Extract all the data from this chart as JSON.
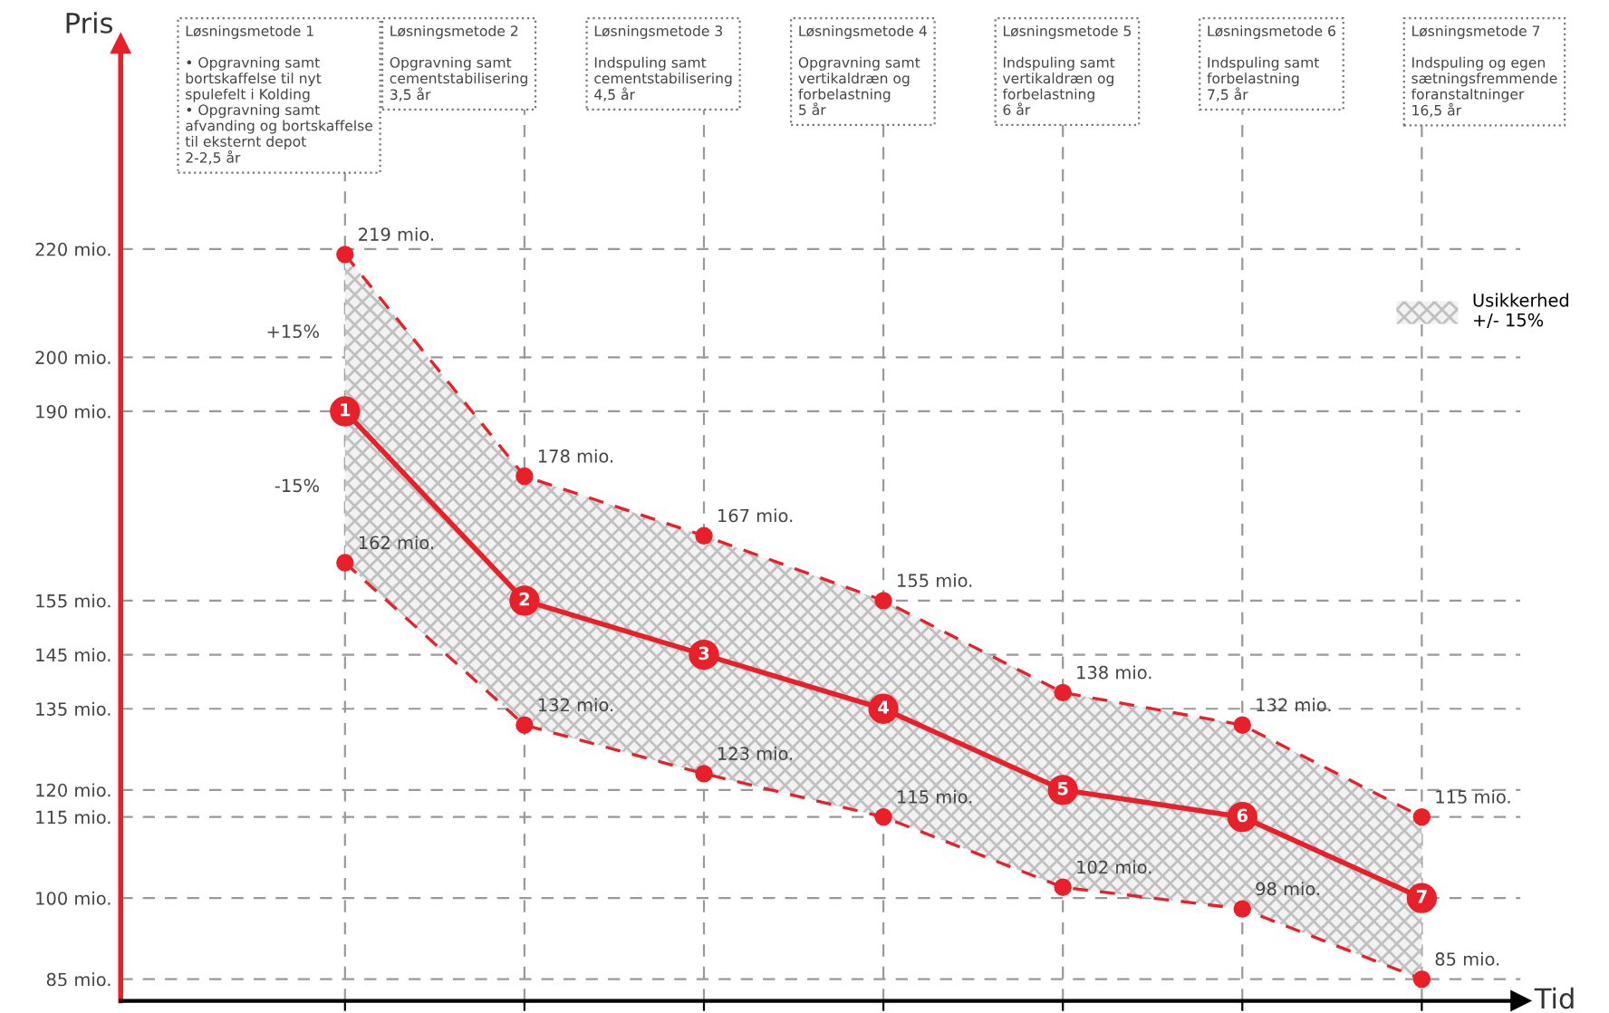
{
  "chart_data": {
    "type": "line",
    "xlabel": "Tid",
    "ylabel": "Pris",
    "categories": [
      null,
      null,
      null,
      null,
      null,
      null,
      null
    ],
    "series": [
      {
        "name": "Usikkerhed\n+/- 15%",
        "color": "#e8202a",
        "values": [
          190,
          155,
          145,
          135,
          120,
          115,
          100
        ],
        "lower": [
          162,
          132,
          123,
          115,
          102,
          98,
          85
        ],
        "upper": [
          219,
          178,
          167,
          155,
          138,
          132,
          115
        ],
        "marker": "circle",
        "line_style": "solid"
      },
      {
        "color": "#e8202a",
        "values": [
          219,
          178,
          167,
          155,
          138,
          132,
          115
        ],
        "value_labels": [
          "219 mio.",
          "178 mio.",
          "167 mio.",
          "155 mio.",
          "138 mio.",
          "132 mio.",
          "115 mio."
        ],
        "marker": "circle",
        "line_style": "dashed"
      },
      {
        "color": "#e8202a",
        "values": [
          162,
          132,
          123,
          115,
          102,
          98,
          85
        ],
        "value_labels": [
          "162 mio.",
          "132 mio.",
          "123 mio.",
          "115 mio.",
          "102 mio.",
          "98 mio.",
          "85 mio."
        ],
        "marker": "circle",
        "line_style": "dashed"
      }
    ],
    "ylim": [
      81,
      258
    ],
    "yticks": [
      {
        "value": 85,
        "label": "85 mio."
      },
      {
        "value": 100,
        "label": "100 mio."
      },
      {
        "value": 115,
        "label": "115 mio."
      },
      {
        "value": 120,
        "label": "120 mio."
      },
      {
        "value": 135,
        "label": "135 mio."
      },
      {
        "value": 145,
        "label": "145 mio."
      },
      {
        "value": 155,
        "label": "155 mio."
      },
      {
        "value": 190,
        "label": "190 mio."
      },
      {
        "value": 200,
        "label": "200 mio."
      },
      {
        "value": 220,
        "label": "220 mio."
      }
    ],
    "tick_labels": "y",
    "grid": true,
    "legend": "right",
    "annotations": [
      "Løsningsmetode 1\n\n• Opgravning samt\nbortskaffelse til nyt\nspulefelt i Kolding\n• Opgravning samt\nafvanding og bortskaffelse\ntil eksternt depot\n2-2,5 år",
      "Løsningsmetode 2\n\nOpgravning samt\ncementstabilisering\n3,5 år",
      "Løsningsmetode 3\n\nIndspuling samt\ncementstabilisering\n4,5 år",
      "Løsningsmetode 4\n\nOpgravning samt\nvertikaldræn og\nforbelastning\n5 år",
      "Løsningsmetode 5\n\nIndspuling samt\nvertikaldræn og\nforbelastning\n6 år",
      "Løsningsmetode 6\n\nIndspuling samt\nforbelastning\n7,5 år",
      "Løsningsmetode 7\n\nIndspuling og egen\nsætningsfremmende\nforanstaltninger\n16,5 år",
      "+15%",
      "-15%",
      "1",
      "2",
      "3",
      "4",
      "5",
      "6",
      "7"
    ]
  }
}
